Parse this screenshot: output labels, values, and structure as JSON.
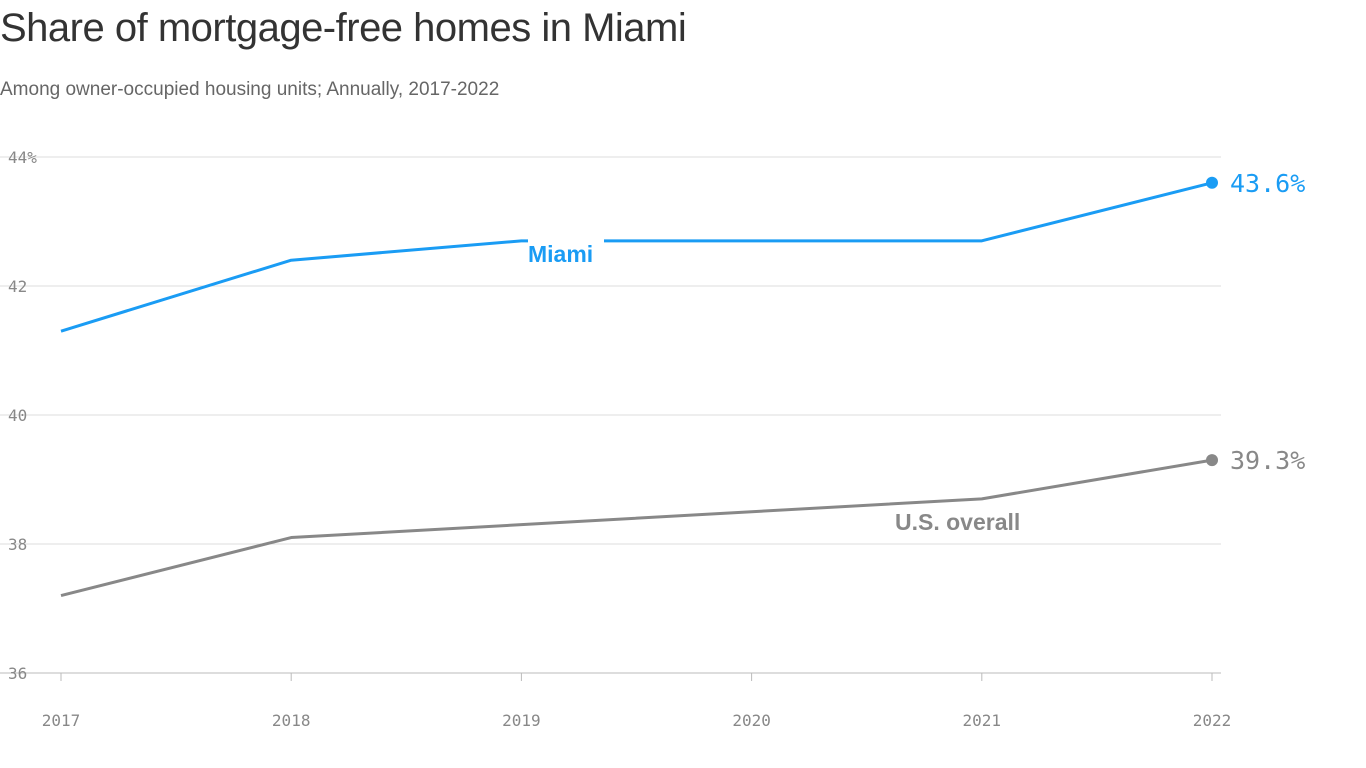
{
  "chart_data": {
    "type": "line",
    "title": "Share of mortgage-free homes in Miami",
    "subtitle": "Among owner-occupied housing units; Annually, 2017-2022",
    "x": [
      "2017",
      "2018",
      "2019",
      "2020",
      "2021",
      "2022"
    ],
    "ylim": [
      36,
      44
    ],
    "yticks": [
      36,
      38,
      40,
      42,
      44
    ],
    "ytick_labels": [
      "36",
      "38",
      "40",
      "42",
      "44%"
    ],
    "grid": true,
    "series": [
      {
        "name": "Miami",
        "color": "#1a9cf4",
        "values": [
          41.3,
          42.4,
          42.7,
          42.7,
          42.7,
          43.6
        ],
        "end_label": "43.6%"
      },
      {
        "name": "U.S. overall",
        "color": "#888888",
        "values": [
          37.2,
          38.1,
          38.3,
          38.5,
          38.7,
          39.3
        ],
        "end_label": "39.3%"
      }
    ]
  }
}
